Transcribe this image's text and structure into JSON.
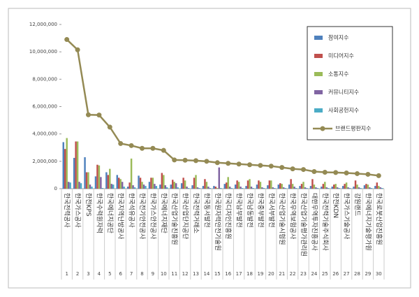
{
  "chart_data": {
    "type": "bar_line",
    "categories": [
      "한국전력공사",
      "한국가스공사",
      "한전KPS",
      "한국수력원자력",
      "한국에너지공단",
      "한국지역난방공사",
      "한국석유공사",
      "한국전기안전공사",
      "한국가스안전공사",
      "한국에너지재단",
      "한국산업기술진흥원",
      "한국산업단지공단",
      "한국전력거래소",
      "한국동서발전",
      "한국원자력안전기술원",
      "한국디자인진흥원",
      "한국남부발전",
      "한국남동발전",
      "한국중부발전",
      "한국서부발전",
      "한국산업기술시험원",
      "한국무역보험공사",
      "한국산업기술평가관리원",
      "대한무역투자진흥공사",
      "한국전력기술주식회사",
      "한전KDN",
      "한국가스기술공사",
      "강원랜드",
      "한국에너지기술평가원",
      "한국로봇산업진흥원"
    ],
    "ranks": [
      1,
      2,
      3,
      4,
      5,
      6,
      7,
      8,
      9,
      10,
      11,
      12,
      13,
      14,
      15,
      16,
      17,
      18,
      19,
      20,
      21,
      22,
      23,
      24,
      25,
      26,
      27,
      28,
      29,
      30
    ],
    "ylim": [
      0,
      12000000
    ],
    "yticks": [
      0,
      {
        "value": 2000000,
        "label": "2,000,000"
      },
      {
        "value": 4000000,
        "label": "4,000,000"
      },
      {
        "value": 6000000,
        "label": "6,000,000"
      },
      {
        "value": 8000000,
        "label": "8,000,000"
      },
      {
        "value": 10000000,
        "label": "10,000,000"
      },
      {
        "value": 12000000,
        "label": "12,000,000"
      }
    ],
    "series": [
      {
        "name": "참여지수",
        "color": "#4f81bd",
        "values": [
          3400000,
          2250000,
          2300000,
          900000,
          1200000,
          1000000,
          150000,
          950000,
          500000,
          300000,
          300000,
          400000,
          250000,
          200000,
          200000,
          350000,
          300000,
          200000,
          300000,
          250000,
          300000,
          300000,
          200000,
          200000,
          150000,
          150000,
          200000,
          150000,
          250000,
          200000
        ]
      },
      {
        "name": "미디어지수",
        "color": "#c0504d",
        "values": [
          2900000,
          3450000,
          1200000,
          1750000,
          1000000,
          800000,
          450000,
          800000,
          800000,
          1150000,
          650000,
          800000,
          800000,
          700000,
          150000,
          450000,
          600000,
          600000,
          600000,
          600000,
          400000,
          700000,
          350000,
          700000,
          350000,
          300000,
          350000,
          600000,
          350000,
          450000
        ]
      },
      {
        "name": "소통지수",
        "color": "#9bbb59",
        "values": [
          3700000,
          3450000,
          1200000,
          1700000,
          1450000,
          700000,
          2200000,
          500000,
          800000,
          1000000,
          500000,
          600000,
          1000000,
          500000,
          50000,
          850000,
          500000,
          700000,
          500000,
          600000,
          350000,
          350000,
          500000,
          300000,
          500000,
          350000,
          450000,
          300000,
          300000,
          200000
        ]
      },
      {
        "name": "커뮤니티지수",
        "color": "#8064a2",
        "values": [
          500000,
          500000,
          300000,
          850000,
          350000,
          500000,
          250000,
          300000,
          350000,
          250000,
          400000,
          150000,
          100000,
          150000,
          1550000,
          150000,
          150000,
          150000,
          100000,
          100000,
          100000,
          150000,
          100000,
          100000,
          100000,
          100000,
          100000,
          100000,
          100000,
          100000
        ]
      },
      {
        "name": "사회공헌지수",
        "color": "#4bacc6",
        "values": [
          450000,
          400000,
          150000,
          50000,
          300000,
          150000,
          100000,
          200000,
          200000,
          100000,
          100000,
          50000,
          50000,
          50000,
          50000,
          50000,
          50000,
          50000,
          50000,
          50000,
          50000,
          50000,
          50000,
          50000,
          50000,
          50000,
          50000,
          50000,
          50000,
          50000
        ]
      },
      {
        "name": "브랜드평판지수",
        "color": "#948a54",
        "type": "line",
        "values": [
          10900000,
          10150000,
          5400000,
          5380000,
          4500000,
          3300000,
          3150000,
          2950000,
          2950000,
          2800000,
          2100000,
          2080000,
          2050000,
          2000000,
          1900000,
          1850000,
          1800000,
          1750000,
          1700000,
          1650000,
          1550000,
          1450000,
          1400000,
          1250000,
          1200000,
          1180000,
          1150000,
          1100000,
          1050000,
          950000
        ]
      }
    ]
  }
}
